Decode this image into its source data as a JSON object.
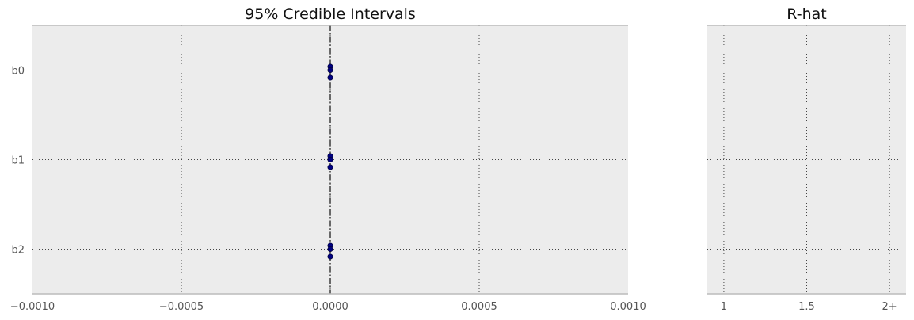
{
  "chart_data": [
    {
      "type": "scatter",
      "title": "95% Credible Intervals",
      "xlabel": "",
      "ylabel": "",
      "xlim": [
        -0.001,
        0.001
      ],
      "x_ticks": [
        "−0.0010",
        "−0.0005",
        "0.0000",
        "0.0005",
        "0.0010"
      ],
      "x_tick_values": [
        -0.001,
        -0.0005,
        0,
        0.0005,
        0.001
      ],
      "categories": [
        "b0",
        "b1",
        "b2"
      ],
      "reference_line": {
        "x": 0,
        "style": "dash-dot"
      },
      "grid": true,
      "background": "#ececec",
      "point_color": "#000080",
      "points": [
        {
          "category": "b0",
          "values": [
            0.0,
            0.0,
            0.0
          ]
        },
        {
          "category": "b1",
          "values": [
            0.0,
            0.0,
            0.0
          ]
        },
        {
          "category": "b2",
          "values": [
            0.0,
            0.0,
            0.0
          ]
        }
      ]
    },
    {
      "type": "scatter",
      "title": "R-hat",
      "xlabel": "",
      "ylabel": "",
      "xlim": [
        0.9,
        2.1
      ],
      "x_ticks": [
        "1",
        "1.5",
        "2+"
      ],
      "x_tick_values": [
        1,
        1.5,
        2
      ],
      "categories": [
        "b0",
        "b1",
        "b2"
      ],
      "grid": true,
      "background": "#ececec",
      "points": []
    }
  ]
}
